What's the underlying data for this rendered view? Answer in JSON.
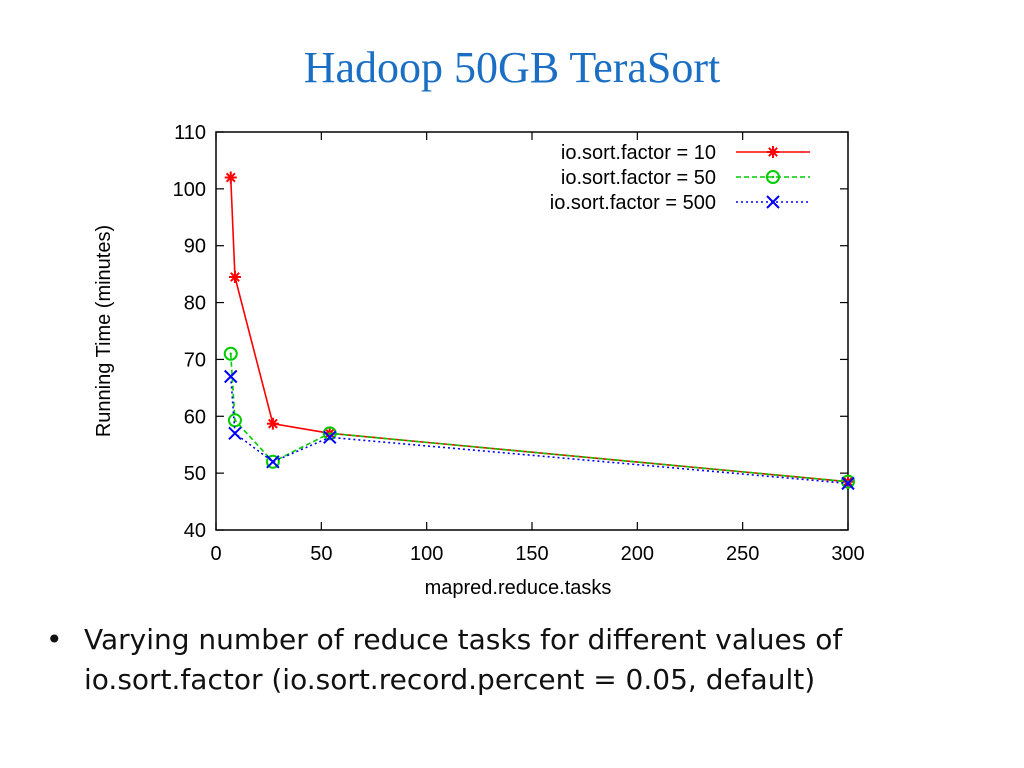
{
  "slide": {
    "title": "Hadoop 50GB TeraSort",
    "bullet_symbol": "•",
    "bullet": "Varying number of reduce tasks for different values of io.sort.factor (io.sort.record.percent = 0.05, default)"
  },
  "chart_data": {
    "type": "line",
    "title": "",
    "xlabel": "mapred.reduce.tasks",
    "ylabel": "Running Time (minutes)",
    "xlim": [
      0,
      300
    ],
    "ylim": [
      40,
      110
    ],
    "xticks": [
      0,
      50,
      100,
      150,
      200,
      250,
      300
    ],
    "yticks": [
      40,
      50,
      60,
      70,
      80,
      90,
      100,
      110
    ],
    "grid": false,
    "legend_position": "top-right",
    "series": [
      {
        "name": "io.sort.factor = 10",
        "color": "#ff0000",
        "line_style": "solid",
        "marker": "asterisk",
        "x": [
          7,
          9,
          27,
          54,
          300
        ],
        "y": [
          102,
          84.5,
          58.7,
          57,
          48.5
        ]
      },
      {
        "name": "io.sort.factor = 50",
        "color": "#00cc00",
        "line_style": "dashed",
        "marker": "circle",
        "x": [
          7,
          9,
          27,
          54,
          300
        ],
        "y": [
          71,
          59.3,
          52,
          57,
          48.5
        ]
      },
      {
        "name": "io.sort.factor = 500",
        "color": "#0000ff",
        "line_style": "dotted",
        "marker": "x",
        "x": [
          7,
          9,
          27,
          54,
          300
        ],
        "y": [
          67,
          57,
          52,
          56.3,
          48.2
        ]
      }
    ]
  }
}
